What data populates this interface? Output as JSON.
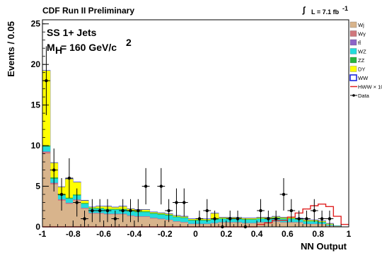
{
  "header": {
    "left": "CDF Run II Preliminary",
    "lumi": "L = 7.1 fb",
    "lumi_sup": "-1"
  },
  "annotations": {
    "channel": "SS 1+ Jets",
    "mass_main": "M",
    "mass_sub": "H",
    "mass_value": " = 160 GeV/c",
    "mass_sup": "2"
  },
  "chart_data": {
    "type": "histogram",
    "title": "",
    "xlabel": "NN Output",
    "ylabel": "Events / 0.05",
    "xlim": [
      -1,
      1
    ],
    "ylim": [
      0,
      25.5
    ],
    "bin_width": 0.05,
    "bin_edges_start": -1,
    "xticks": [
      -1,
      -0.8,
      -0.6,
      -0.4,
      -0.2,
      0,
      0.2,
      0.4,
      0.6,
      0.8,
      1
    ],
    "xtick_labels": [
      "-1",
      "-0.8",
      "-0.6",
      "-0.4",
      "-0.2",
      "0",
      "0.2",
      "0.4",
      "0.6",
      "0.8",
      "1"
    ],
    "yticks": [
      0,
      5,
      10,
      15,
      20,
      25
    ],
    "ytick_labels": [
      "0",
      "5",
      "10",
      "15",
      "20",
      "25"
    ],
    "legend_position": "right",
    "grid": false,
    "stack_series": [
      {
        "name": "Wj",
        "color": "#d8b48c",
        "values": [
          9.0,
          5.2,
          3.2,
          2.8,
          3.2,
          2.2,
          1.6,
          1.6,
          1.5,
          1.5,
          1.5,
          1.3,
          1.2,
          1.2,
          1.0,
          0.9,
          0.8,
          0.6,
          0.5,
          0.3,
          0.3,
          0.3,
          0.4,
          0.5,
          0.5,
          0.5,
          0.4,
          0.4,
          0.5,
          0.5,
          0.6,
          0.5,
          0.5,
          0.5,
          0.3,
          0.3,
          0.3,
          0.1,
          0.05,
          0.0
        ]
      },
      {
        "name": "Wγ",
        "color": "#d0787c",
        "values": [
          0.2,
          0.15,
          0.12,
          0.1,
          0.1,
          0.08,
          0.06,
          0.06,
          0.05,
          0.05,
          0.05,
          0.05,
          0.05,
          0.05,
          0.05,
          0.04,
          0.04,
          0.04,
          0.04,
          0.03,
          0.03,
          0.03,
          0.03,
          0.03,
          0.03,
          0.03,
          0.03,
          0.03,
          0.03,
          0.03,
          0.03,
          0.03,
          0.03,
          0.03,
          0.02,
          0.02,
          0.02,
          0.02,
          0.01,
          0.0
        ]
      },
      {
        "name": "tt̄",
        "color": "#8c64c8",
        "values": [
          0.05,
          0.05,
          0.04,
          0.04,
          0.04,
          0.03,
          0.03,
          0.03,
          0.03,
          0.03,
          0.03,
          0.03,
          0.03,
          0.03,
          0.03,
          0.03,
          0.02,
          0.02,
          0.02,
          0.02,
          0.02,
          0.02,
          0.02,
          0.02,
          0.02,
          0.02,
          0.02,
          0.02,
          0.02,
          0.02,
          0.02,
          0.02,
          0.02,
          0.02,
          0.02,
          0.02,
          0.01,
          0.01,
          0.01,
          0.0
        ]
      },
      {
        "name": "WZ",
        "color": "#22dcdc",
        "values": [
          0.6,
          0.5,
          0.5,
          0.5,
          0.5,
          0.5,
          0.5,
          0.5,
          0.5,
          0.5,
          0.5,
          0.5,
          0.5,
          0.5,
          0.5,
          0.5,
          0.5,
          0.5,
          0.5,
          0.4,
          0.4,
          0.4,
          0.4,
          0.4,
          0.4,
          0.4,
          0.4,
          0.4,
          0.4,
          0.4,
          0.4,
          0.4,
          0.4,
          0.3,
          0.3,
          0.3,
          0.2,
          0.1,
          0.05,
          0.0
        ]
      },
      {
        "name": "ZZ",
        "color": "#28b43c",
        "values": [
          0.15,
          0.15,
          0.12,
          0.12,
          0.12,
          0.1,
          0.1,
          0.1,
          0.1,
          0.1,
          0.1,
          0.1,
          0.1,
          0.1,
          0.1,
          0.1,
          0.1,
          0.08,
          0.08,
          0.08,
          0.08,
          0.08,
          0.08,
          0.08,
          0.08,
          0.08,
          0.08,
          0.08,
          0.08,
          0.08,
          0.08,
          0.08,
          0.08,
          0.06,
          0.06,
          0.06,
          0.05,
          0.03,
          0.01,
          0.0
        ]
      },
      {
        "name": "DY",
        "color": "#ffff00",
        "values": [
          9.2,
          1.8,
          0.9,
          2.3,
          1.5,
          0.3,
          0.1,
          0.2,
          0.3,
          0.2,
          0.3,
          0.2,
          0.2,
          0.2,
          0.1,
          0.1,
          0.1,
          0.1,
          0.1,
          0.1,
          0.1,
          0.1,
          0.7,
          0.1,
          0.1,
          0.1,
          0.1,
          0.1,
          0.1,
          0.1,
          0.1,
          0.1,
          0.1,
          0.1,
          0.1,
          0.1,
          0.1,
          0.1,
          0.0,
          0.0
        ]
      },
      {
        "name": "WW",
        "color": "#1e28dc",
        "fill": "none",
        "values": [
          0.05,
          0.05,
          0.05,
          0.05,
          0.05,
          0.05,
          0.05,
          0.05,
          0.05,
          0.05,
          0.05,
          0.05,
          0.05,
          0.05,
          0.05,
          0.05,
          0.05,
          0.05,
          0.05,
          0.05,
          0.05,
          0.05,
          0.05,
          0.05,
          0.05,
          0.05,
          0.05,
          0.05,
          0.05,
          0.05,
          0.05,
          0.05,
          0.05,
          0.05,
          0.05,
          0.05,
          0.05,
          0.05,
          0.0,
          0.0
        ]
      }
    ],
    "signal": {
      "name": "HWW × 10",
      "color": "#e02020",
      "values": [
        0,
        0,
        0,
        0,
        0,
        0,
        0,
        0,
        0,
        0,
        0,
        0,
        0,
        0,
        0,
        0,
        0,
        0,
        0,
        0,
        0,
        0,
        0,
        0,
        0,
        0,
        0,
        0,
        0.3,
        0.5,
        0.8,
        0.8,
        1.2,
        1.7,
        2.2,
        2.6,
        2.8,
        2.5,
        1.3,
        0.3
      ]
    },
    "data_points": {
      "name": "Data",
      "color": "#000000",
      "x": [
        -0.975,
        -0.925,
        -0.875,
        -0.825,
        -0.775,
        -0.725,
        -0.675,
        -0.625,
        -0.575,
        -0.525,
        -0.475,
        -0.425,
        -0.375,
        -0.325,
        -0.225,
        -0.175,
        -0.125,
        -0.075,
        0.025,
        0.075,
        0.125,
        0.175,
        0.225,
        0.275,
        0.325,
        0.425,
        0.475,
        0.525,
        0.575,
        0.625,
        0.675,
        0.725,
        0.775,
        0.825,
        0.875
      ],
      "y": [
        18,
        7,
        4,
        6,
        3,
        1,
        2,
        2,
        2,
        1,
        2,
        2,
        2,
        5,
        5,
        2,
        3,
        3,
        1,
        2,
        1,
        0,
        1,
        1,
        0,
        2,
        1,
        1,
        4,
        2,
        1,
        1,
        2,
        1,
        1
      ]
    }
  }
}
